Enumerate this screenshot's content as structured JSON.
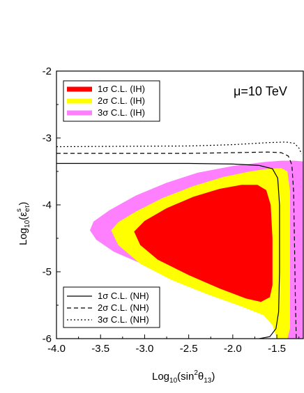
{
  "chart_data": {
    "type": "contour",
    "xlim": [
      -4.0,
      -1.2
    ],
    "ylim": [
      -6,
      -2
    ],
    "x_ticks": [
      {
        "value": -4.0,
        "label": "-4.0"
      },
      {
        "value": -3.5,
        "label": "-3.5"
      },
      {
        "value": -3.0,
        "label": "-3.0"
      },
      {
        "value": -2.5,
        "label": "-2.5"
      },
      {
        "value": -2.0,
        "label": "-2.0"
      },
      {
        "value": -1.5,
        "label": "-1.5"
      }
    ],
    "y_ticks": [
      {
        "value": -2,
        "label": "-2"
      },
      {
        "value": -3,
        "label": "-3"
      },
      {
        "value": -4,
        "label": "-4"
      },
      {
        "value": -5,
        "label": "-5"
      },
      {
        "value": -6,
        "label": "-6"
      }
    ],
    "xlabel": {
      "main": "Log",
      "sub": "10",
      "tail1": "(sin",
      "sup": "2",
      "tail2": "θ",
      "sub2": "13",
      "close": ")"
    },
    "ylabel": {
      "main": "Log",
      "sub": "10",
      "tail": "(ε",
      "sup": "s",
      "sub2": "eτ",
      "close": ")"
    },
    "annotation": "μ=10 TeV",
    "colors": {
      "ih1": "#ff0000",
      "ih2": "#ffff00",
      "ih3": "#ff80ff",
      "line": "#000000"
    },
    "ih_regions": [
      {
        "name": "3σ C.L. (IH)",
        "color": "#ff80ff",
        "points": [
          [
            -3.62,
            -4.38
          ],
          [
            -3.58,
            -4.25
          ],
          [
            -3.4,
            -4.08
          ],
          [
            -3.1,
            -3.86
          ],
          [
            -2.75,
            -3.67
          ],
          [
            -2.4,
            -3.52
          ],
          [
            -2.0,
            -3.42
          ],
          [
            -1.65,
            -3.36
          ],
          [
            -1.45,
            -3.34
          ],
          [
            -1.3,
            -3.34
          ],
          [
            -1.2,
            -3.35
          ],
          [
            -1.2,
            -6.0
          ],
          [
            -1.42,
            -6.0
          ],
          [
            -1.5,
            -5.75
          ],
          [
            -1.62,
            -5.55
          ],
          [
            -1.85,
            -5.42
          ],
          [
            -2.2,
            -5.28
          ],
          [
            -2.6,
            -5.1
          ],
          [
            -3.0,
            -4.9
          ],
          [
            -3.35,
            -4.7
          ],
          [
            -3.55,
            -4.52
          ]
        ]
      },
      {
        "name": "2σ C.L. (IH)",
        "color": "#ffff00",
        "points": [
          [
            -3.38,
            -4.38
          ],
          [
            -3.3,
            -4.26
          ],
          [
            -3.1,
            -4.1
          ],
          [
            -2.8,
            -3.9
          ],
          [
            -2.45,
            -3.72
          ],
          [
            -2.1,
            -3.58
          ],
          [
            -1.8,
            -3.5
          ],
          [
            -1.6,
            -3.46
          ],
          [
            -1.45,
            -3.45
          ],
          [
            -1.38,
            -3.5
          ],
          [
            -1.35,
            -3.8
          ],
          [
            -1.35,
            -5.85
          ],
          [
            -1.38,
            -6.0
          ],
          [
            -1.5,
            -6.0
          ],
          [
            -1.55,
            -5.8
          ],
          [
            -1.65,
            -5.65
          ],
          [
            -1.9,
            -5.52
          ],
          [
            -2.3,
            -5.33
          ],
          [
            -2.7,
            -5.12
          ],
          [
            -3.05,
            -4.88
          ],
          [
            -3.3,
            -4.6
          ]
        ]
      },
      {
        "name": "1σ C.L. (IH)",
        "color": "#ff0000",
        "points": [
          [
            -3.12,
            -4.4
          ],
          [
            -3.0,
            -4.24
          ],
          [
            -2.75,
            -4.05
          ],
          [
            -2.45,
            -3.88
          ],
          [
            -2.15,
            -3.76
          ],
          [
            -1.9,
            -3.7
          ],
          [
            -1.72,
            -3.7
          ],
          [
            -1.62,
            -3.78
          ],
          [
            -1.57,
            -4.0
          ],
          [
            -1.55,
            -4.5
          ],
          [
            -1.55,
            -5.2
          ],
          [
            -1.58,
            -5.38
          ],
          [
            -1.68,
            -5.45
          ],
          [
            -1.85,
            -5.4
          ],
          [
            -2.15,
            -5.25
          ],
          [
            -2.5,
            -5.05
          ],
          [
            -2.85,
            -4.82
          ],
          [
            -3.05,
            -4.6
          ]
        ]
      }
    ],
    "nh_lines": [
      {
        "name": "1σ C.L. (NH)",
        "dash": "",
        "points": [
          [
            -4.0,
            -3.38
          ],
          [
            -2.5,
            -3.38
          ],
          [
            -2.0,
            -3.39
          ],
          [
            -1.7,
            -3.41
          ],
          [
            -1.55,
            -3.46
          ],
          [
            -1.49,
            -3.6
          ],
          [
            -1.47,
            -4.0
          ],
          [
            -1.47,
            -5.0
          ],
          [
            -1.48,
            -5.6
          ],
          [
            -1.51,
            -5.85
          ],
          [
            -1.58,
            -5.97
          ],
          [
            -1.7,
            -6.0
          ]
        ]
      },
      {
        "name": "2σ C.L. (NH)",
        "dash": "6,4",
        "points": [
          [
            -4.0,
            -3.23
          ],
          [
            -2.5,
            -3.23
          ],
          [
            -2.0,
            -3.22
          ],
          [
            -1.6,
            -3.21
          ],
          [
            -1.45,
            -3.22
          ],
          [
            -1.37,
            -3.27
          ],
          [
            -1.33,
            -3.4
          ],
          [
            -1.31,
            -3.8
          ],
          [
            -1.3,
            -4.6
          ],
          [
            -1.29,
            -5.4
          ],
          [
            -1.28,
            -6.0
          ]
        ]
      },
      {
        "name": "3σ C.L. (NH)",
        "dash": "2,3",
        "points": [
          [
            -4.0,
            -3.13
          ],
          [
            -2.5,
            -3.12
          ],
          [
            -2.0,
            -3.1
          ],
          [
            -1.6,
            -3.07
          ],
          [
            -1.4,
            -3.06
          ],
          [
            -1.3,
            -3.08
          ],
          [
            -1.25,
            -3.15
          ],
          [
            -1.22,
            -3.24
          ]
        ]
      }
    ],
    "legend_ih": [
      "1σ C.L. (IH)",
      "2σ C.L. (IH)",
      "3σ C.L. (IH)"
    ],
    "legend_nh": [
      "1σ C.L. (NH)",
      "2σ C.L. (NH)",
      "3σ C.L. (NH)"
    ],
    "legend_ih_placement": "top-left",
    "legend_nh_placement": "bottom-left",
    "annotation_placement": "top-right"
  }
}
